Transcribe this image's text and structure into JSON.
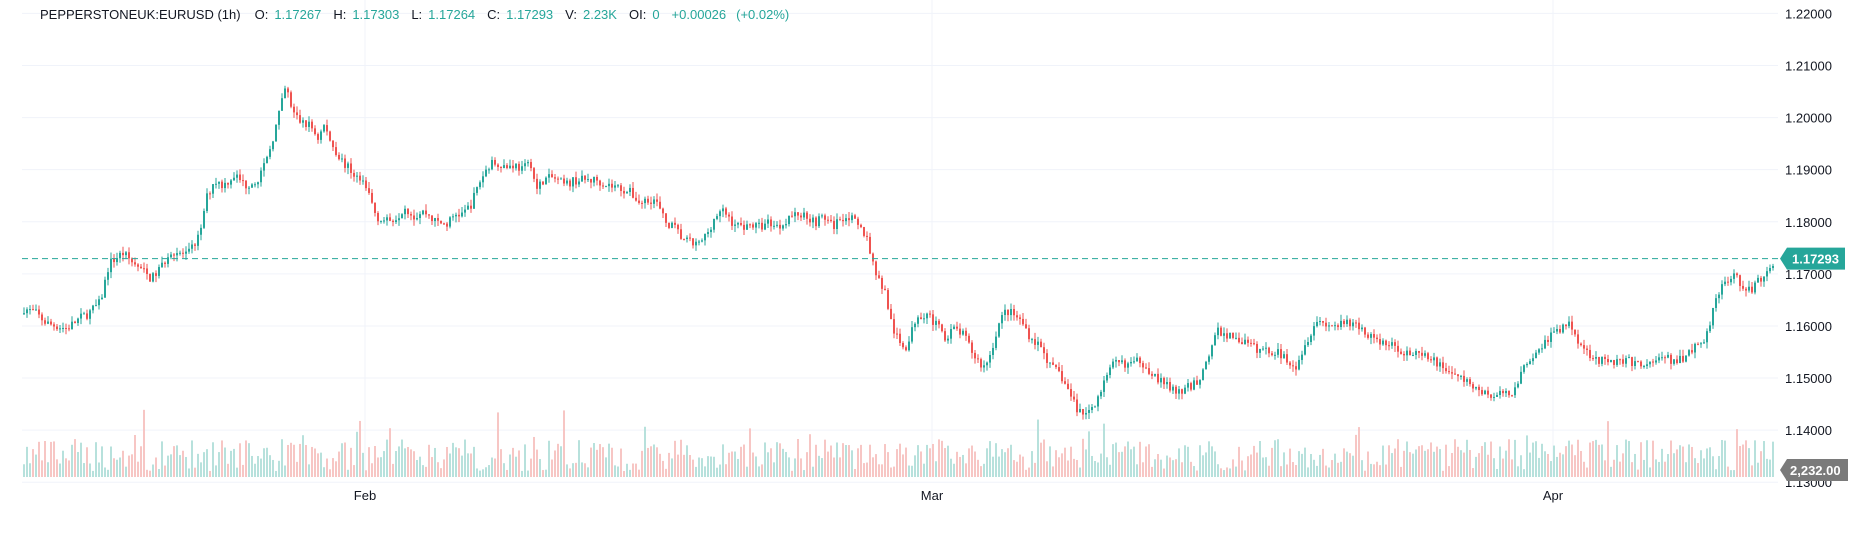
{
  "legend": {
    "symbol": "PEPPERSTONEUK:EURUSD (1h)",
    "o_label": "O:",
    "o_value": "1.17267",
    "h_label": "H:",
    "h_value": "1.17303",
    "l_label": "L:",
    "l_value": "1.17264",
    "c_label": "C:",
    "c_value": "1.17293",
    "v_label": "V:",
    "v_value": "2.23K",
    "oi_label": "OI:",
    "oi_value": "0",
    "change": "+0.00026",
    "change_pct": "(+0.02%)"
  },
  "colors": {
    "up": "#26a69a",
    "down": "#ef5350",
    "volume_up": "#b7e1dc",
    "volume_down": "#f7c6c4",
    "price_line": "#26a69a",
    "grid": "#f0f3fa",
    "text": "#131722",
    "value_color": "#26a69a"
  },
  "chart_data": {
    "type": "candlestick",
    "symbol": "EURUSD",
    "interval": "1h",
    "y_ticks": [
      "1.22000",
      "1.21000",
      "1.20000",
      "1.19000",
      "1.18000",
      "1.17000",
      "1.16000",
      "1.15000",
      "1.14000",
      "1.13000"
    ],
    "ylim": [
      1.131,
      1.222
    ],
    "x_ticks": [
      "Feb",
      "Mar",
      "Apr"
    ],
    "last_price": "1.17293",
    "last_volume": "2,232.00",
    "grid": true,
    "close_path": [
      [
        0,
        1.1635
      ],
      [
        0.012,
        1.1625
      ],
      [
        0.022,
        1.1605
      ],
      [
        0.04,
        1.1595
      ],
      [
        0.052,
        1.1615
      ],
      [
        0.06,
        1.1625
      ],
      [
        0.07,
        1.1645
      ],
      [
        0.078,
        1.172
      ],
      [
        0.09,
        1.174
      ],
      [
        0.1,
        1.172
      ],
      [
        0.108,
        1.1705
      ],
      [
        0.116,
        1.169
      ],
      [
        0.125,
        1.1715
      ],
      [
        0.133,
        1.1745
      ],
      [
        0.14,
        1.174
      ],
      [
        0.148,
        1.1735
      ],
      [
        0.155,
        1.176
      ],
      [
        0.16,
        1.178
      ],
      [
        0.164,
        1.184
      ],
      [
        0.172,
        1.188
      ],
      [
        0.18,
        1.187
      ],
      [
        0.19,
        1.189
      ],
      [
        0.2,
        1.187
      ],
      [
        0.21,
        1.188
      ],
      [
        0.218,
        1.191
      ],
      [
        0.228,
        1.199
      ],
      [
        0.236,
        1.206
      ],
      [
        0.242,
        1.201
      ],
      [
        0.25,
        1.199
      ],
      [
        0.258,
        1.1985
      ],
      [
        0.265,
        1.196
      ],
      [
        0.27,
        1.1985
      ],
      [
        0.277,
        1.195
      ],
      [
        0.285,
        1.192
      ],
      [
        0.293,
        1.19
      ],
      [
        0.302,
        1.188
      ],
      [
        0.31,
        1.1855
      ],
      [
        0.317,
        1.181
      ],
      [
        0.326,
        1.18
      ],
      [
        0.335,
        1.181
      ],
      [
        0.343,
        1.183
      ],
      [
        0.35,
        1.181
      ],
      [
        0.36,
        1.182
      ],
      [
        0.37,
        1.18
      ],
      [
        0.38,
        1.1795
      ],
      [
        0.388,
        1.1815
      ],
      [
        0.395,
        1.1815
      ],
      [
        0.402,
        1.1835
      ],
      [
        0.41,
        1.188
      ],
      [
        0.418,
        1.191
      ],
      [
        0.425,
        1.1915
      ],
      [
        0.433,
        1.1905
      ],
      [
        0.44,
        1.191
      ],
      [
        0.448,
        1.19
      ],
      [
        0.455,
        1.1915
      ],
      [
        0.46,
        1.186
      ],
      [
        0.466,
        1.188
      ],
      [
        0.475,
        1.1885
      ],
      [
        0.485,
        1.187
      ],
      [
        0.495,
        1.188
      ],
      [
        0.505,
        1.188
      ],
      [
        0.515,
        1.188
      ],
      [
        0.525,
        1.187
      ],
      [
        0.535,
        1.1865
      ],
      [
        0.545,
        1.1855
      ],
      [
        0.553,
        1.1835
      ],
      [
        0.56,
        1.1845
      ],
      [
        0.567,
        1.184
      ],
      [
        0.575,
        1.18
      ],
      [
        0.583,
        1.179
      ],
      [
        0.59,
        1.177
      ],
      [
        0.597,
        1.176
      ],
      [
        0.605,
        1.1755
      ],
      [
        0.612,
        1.1775
      ],
      [
        0.62,
        1.181
      ],
      [
        0.628,
        1.182
      ],
      [
        0.635,
        1.18
      ],
      [
        0.642,
        1.179
      ],
      [
        0.65,
        1.1795
      ],
      [
        0.66,
        1.179
      ],
      [
        0.668,
        1.18
      ],
      [
        0.677,
        1.179
      ],
      [
        0.686,
        1.181
      ],
      [
        0.695,
        1.1815
      ],
      [
        0.703,
        1.181
      ],
      [
        0.71,
        1.18
      ],
      [
        0.718,
        1.181
      ],
      [
        0.725,
        1.179
      ],
      [
        0.733,
        1.181
      ],
      [
        0.74,
        1.181
      ],
      [
        0.748,
        1.179
      ],
      [
        0.755,
        1.1775
      ],
      [
        0.76,
        1.173
      ],
      [
        0.766,
        1.169
      ],
      [
        0.772,
        1.1665
      ],
      [
        0.778,
        1.16
      ],
      [
        0.785,
        1.1565
      ],
      [
        0.792,
        1.156
      ],
      [
        0.8,
        1.162
      ],
      [
        0.81,
        1.1625
      ],
      [
        0.818,
        1.16
      ],
      [
        0.826,
        1.158
      ],
      [
        0.835,
        1.1595
      ],
      [
        0.843,
        1.158
      ],
      [
        0.851,
        1.1545
      ],
      [
        0.86,
        1.152
      ],
      [
        0.866,
        1.1545
      ],
      [
        0.873,
        1.16
      ],
      [
        0.88,
        1.163
      ],
      [
        0.888,
        1.162
      ],
      [
        0.895,
        1.1605
      ],
      [
        0.903,
        1.1575
      ],
      [
        0.912,
        1.156
      ],
      [
        0.92,
        1.152
      ],
      [
        0.928,
        1.151
      ],
      [
        0.936,
        1.1475
      ],
      [
        0.944,
        1.144
      ],
      [
        0.952,
        1.143
      ],
      [
        0.96,
        1.1455
      ],
      [
        0.968,
        1.149
      ],
      [
        0.976,
        1.1525
      ],
      [
        0.984,
        1.153
      ],
      [
        0.992,
        1.1525
      ],
      [
        1.0,
        1.1535
      ]
    ],
    "close_path_right": [
      [
        0.0,
        1.1535
      ],
      [
        0.05,
        1.1495
      ],
      [
        0.1,
        1.147
      ],
      [
        0.15,
        1.1495
      ],
      [
        0.2,
        1.159
      ],
      [
        0.25,
        1.1575
      ],
      [
        0.3,
        1.1555
      ],
      [
        0.35,
        1.155
      ],
      [
        0.4,
        1.1525
      ],
      [
        0.45,
        1.161
      ],
      [
        0.5,
        1.16
      ],
      [
        0.55,
        1.1605
      ],
      [
        0.6,
        1.1575
      ],
      [
        0.65,
        1.156
      ],
      [
        0.7,
        1.1545
      ],
      [
        0.75,
        1.1535
      ],
      [
        0.8,
        1.151
      ],
      [
        0.85,
        1.1485
      ],
      [
        0.9,
        1.1465
      ],
      [
        0.95,
        1.147
      ],
      [
        1.0,
        1.154
      ]
    ],
    "close_path_tail": [
      [
        0.0,
        1.154
      ],
      [
        0.08,
        1.158
      ],
      [
        0.16,
        1.1605
      ],
      [
        0.22,
        1.1555
      ],
      [
        0.3,
        1.153
      ],
      [
        0.38,
        1.1535
      ],
      [
        0.46,
        1.1525
      ],
      [
        0.54,
        1.154
      ],
      [
        0.6,
        1.153
      ],
      [
        0.66,
        1.1555
      ],
      [
        0.72,
        1.158
      ],
      [
        0.76,
        1.166
      ],
      [
        0.8,
        1.169
      ],
      [
        0.84,
        1.17
      ],
      [
        0.88,
        1.166
      ],
      [
        0.92,
        1.168
      ],
      [
        0.96,
        1.1695
      ],
      [
        1.0,
        1.1729
      ]
    ]
  }
}
